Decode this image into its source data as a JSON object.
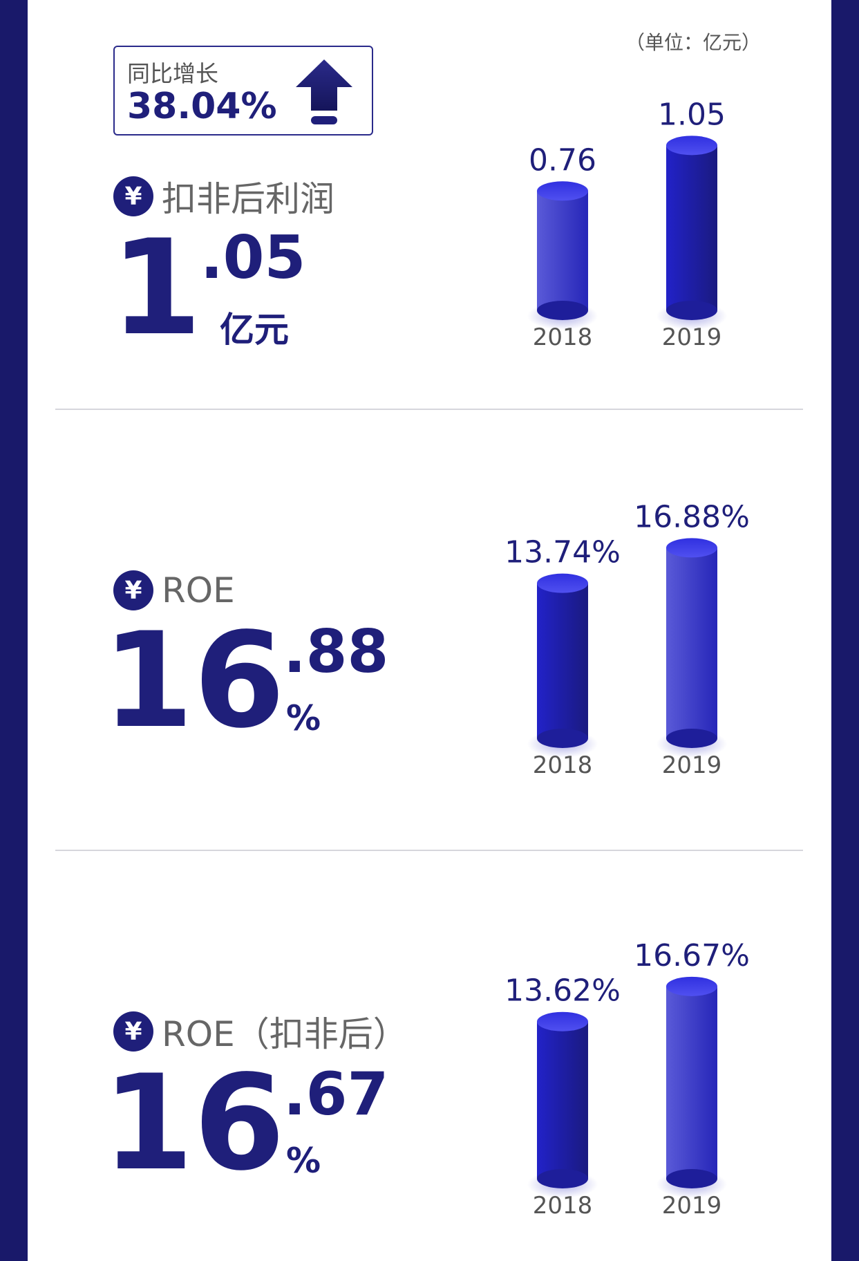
{
  "unit_note": "（单位：亿元）",
  "growth": {
    "label": "同比增长",
    "value": "38.04%"
  },
  "metrics": [
    {
      "title": "扣非后利润",
      "int": "1",
      "dec": ".05",
      "unit": "亿元"
    },
    {
      "title": "ROE",
      "int": "16",
      "dec": ".88",
      "unit": "%"
    },
    {
      "title": "ROE（扣非后）",
      "int": "16",
      "dec": ".67",
      "unit": "%"
    }
  ],
  "colors": {
    "frame": "#19196a",
    "accent": "#1f1f7a",
    "bar": "#2a2ad0"
  },
  "chart_data": [
    {
      "type": "bar",
      "categories": [
        "2018",
        "2019"
      ],
      "values": [
        0.76,
        1.05
      ],
      "labels": [
        "0.76",
        "1.05"
      ],
      "ylim": [
        0,
        1.1
      ]
    },
    {
      "type": "bar",
      "categories": [
        "2018",
        "2019"
      ],
      "values": [
        13.74,
        16.88
      ],
      "labels": [
        "13.74%",
        "16.88%"
      ],
      "ylim": [
        0,
        17.7
      ]
    },
    {
      "type": "bar",
      "categories": [
        "2018",
        "2019"
      ],
      "values": [
        13.62,
        16.67
      ],
      "labels": [
        "13.62%",
        "16.67%"
      ],
      "ylim": [
        0,
        17.5
      ]
    }
  ]
}
